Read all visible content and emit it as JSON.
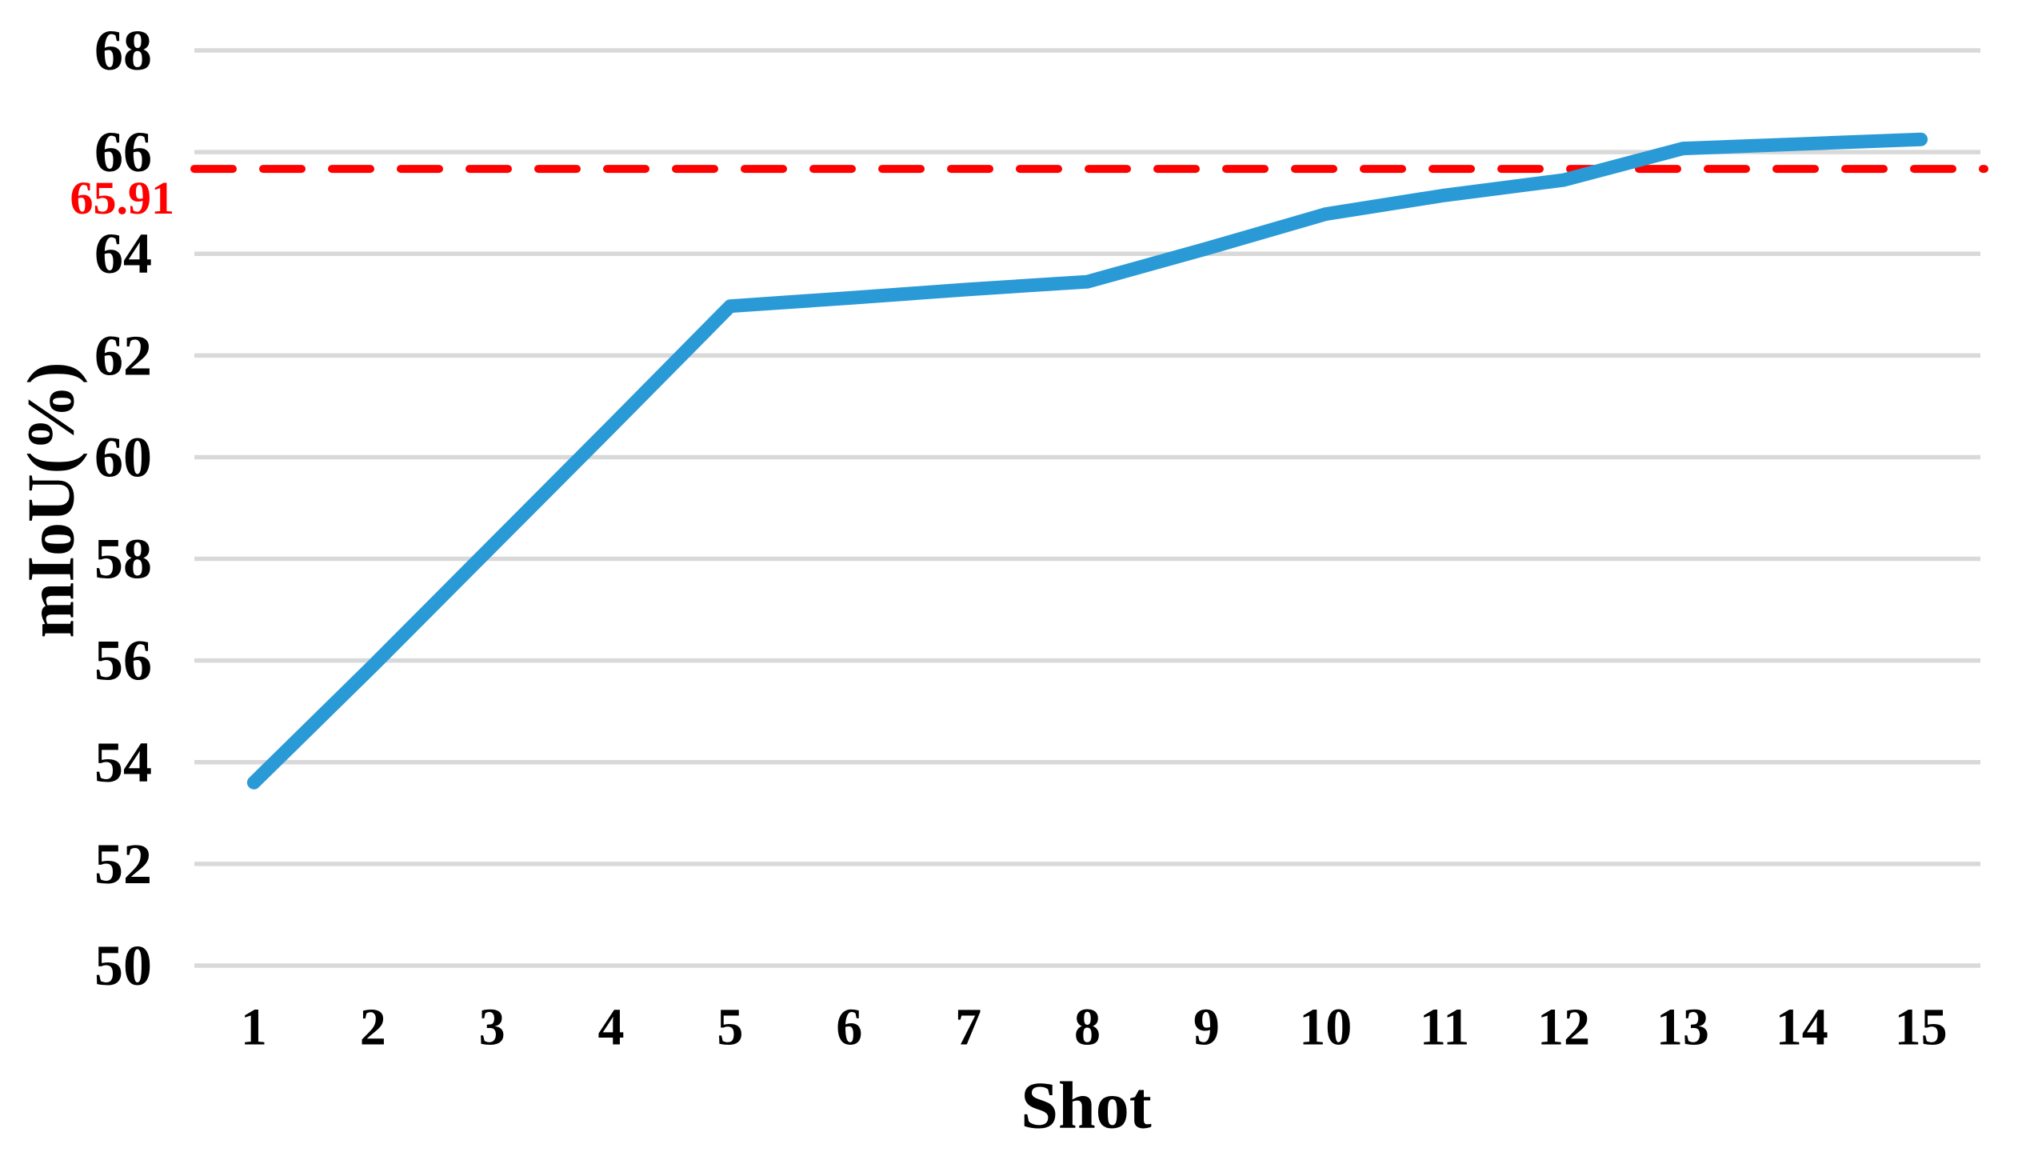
{
  "chart_data": {
    "type": "line",
    "title": "",
    "xlabel": "Shot",
    "ylabel": "mIoU(%)",
    "x": [
      1,
      2,
      3,
      4,
      5,
      6,
      7,
      8,
      9,
      10,
      11,
      12,
      13,
      14,
      15
    ],
    "x_tick_labels": [
      "1",
      "2",
      "3",
      "4",
      "5",
      "6",
      "7",
      "8",
      "9",
      "10",
      "11",
      "12",
      "13",
      "14",
      "15"
    ],
    "series": [
      {
        "name": "mIoU",
        "color": "#2A9AD6",
        "values": [
          53.6,
          55.9,
          58.25,
          60.6,
          62.97,
          63.13,
          63.3,
          63.45,
          64.1,
          64.78,
          65.15,
          65.45,
          66.07,
          66.16,
          66.25
        ]
      }
    ],
    "reference_line": {
      "label": "65.91",
      "value": 65.91,
      "render_value": 65.67,
      "color": "#FF0000",
      "style": "dashed"
    },
    "ylim": [
      50,
      68
    ],
    "ytick_step": 2,
    "y_tick_labels": [
      "50",
      "52",
      "54",
      "56",
      "58",
      "60",
      "62",
      "64",
      "66",
      "68"
    ],
    "grid": "horizontal",
    "gridline_color": "#D9D9D9",
    "text_color": "#000000",
    "background": "#FFFFFF",
    "legend": "none"
  }
}
